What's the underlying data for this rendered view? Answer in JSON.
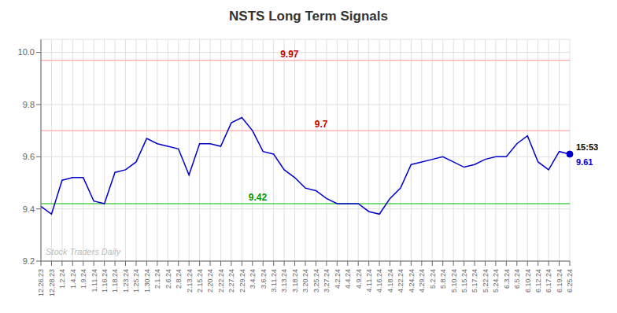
{
  "chart_data": {
    "type": "line",
    "title": "NSTS Long Term Signals",
    "color": "#0000cc",
    "marker": "none",
    "grid": true,
    "categories": [
      "12.26.23",
      "12.28.23",
      "1.2.24",
      "1.4.24",
      "1.9.24",
      "1.11.24",
      "1.16.24",
      "1.18.24",
      "1.23.24",
      "1.25.24",
      "1.30.24",
      "2.1.24",
      "2.6.24",
      "2.8.24",
      "2.13.24",
      "2.15.24",
      "2.20.24",
      "2.22.24",
      "2.27.24",
      "2.29.24",
      "3.4.24",
      "3.6.24",
      "3.11.24",
      "3.13.24",
      "3.18.24",
      "3.20.24",
      "3.25.24",
      "3.27.24",
      "4.2.24",
      "4.4.24",
      "4.9.24",
      "4.11.24",
      "4.16.24",
      "4.18.24",
      "4.22.24",
      "4.24.24",
      "4.29.24",
      "5.2.24",
      "5.8.24",
      "5.10.24",
      "5.15.24",
      "5.17.24",
      "5.22.24",
      "5.24.24",
      "6.3.24",
      "6.5.24",
      "6.10.24",
      "6.12.24",
      "6.17.24",
      "6.19.24",
      "6.25.24"
    ],
    "values": [
      9.41,
      9.38,
      9.51,
      9.52,
      9.52,
      9.43,
      9.42,
      9.54,
      9.55,
      9.58,
      9.67,
      9.65,
      9.64,
      9.63,
      9.53,
      9.65,
      9.65,
      9.64,
      9.73,
      9.75,
      9.7,
      9.62,
      9.61,
      9.55,
      9.52,
      9.48,
      9.47,
      9.44,
      9.42,
      9.42,
      9.42,
      9.39,
      9.38,
      9.44,
      9.48,
      9.57,
      9.58,
      9.59,
      9.6,
      9.58,
      9.56,
      9.57,
      9.59,
      9.6,
      9.6,
      9.65,
      9.68,
      9.58,
      9.55,
      9.62,
      9.61
    ],
    "ylim": [
      9.2,
      10.05
    ],
    "yticks": [
      9.2,
      9.4,
      9.6,
      9.8,
      {
        "value": 10.0,
        "label": "10.0"
      }
    ],
    "hlines": [
      {
        "value": 9.97,
        "label": "9.97",
        "color": "#ffaaaa",
        "label_color": "#cc0000"
      },
      {
        "value": 9.7,
        "label": "9.7",
        "color": "#ffaaaa",
        "label_color": "#cc0000"
      },
      {
        "value": 9.42,
        "label": "9.42",
        "color": "#00bb00",
        "label_color": "#009900"
      }
    ],
    "annotations": [
      {
        "text": "15:53",
        "color": "#000000",
        "anchor": "end_above"
      },
      {
        "text": "9.61",
        "color": "#0000cc",
        "anchor": "end_below"
      },
      {
        "text": "Stock Traders Daily",
        "color": "#bbbbbb",
        "anchor": "watermark"
      }
    ]
  }
}
